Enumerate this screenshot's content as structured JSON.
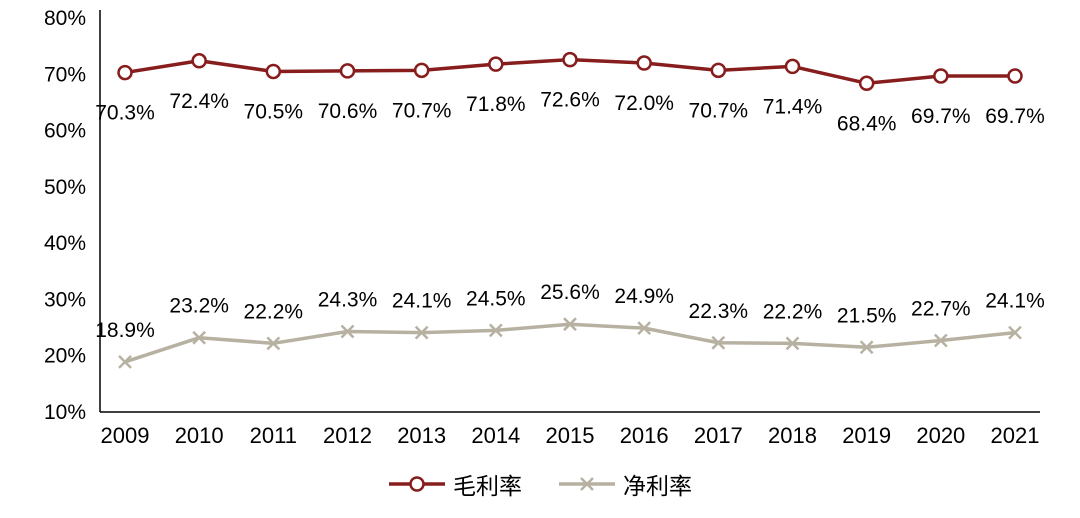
{
  "chart_data": {
    "type": "line",
    "categories": [
      "2009",
      "2010",
      "2011",
      "2012",
      "2013",
      "2014",
      "2015",
      "2016",
      "2017",
      "2018",
      "2019",
      "2020",
      "2021"
    ],
    "series": [
      {
        "name": "毛利率",
        "values": [
          70.3,
          72.4,
          70.5,
          70.6,
          70.7,
          71.8,
          72.6,
          72.0,
          70.7,
          71.4,
          68.4,
          69.7,
          69.7
        ],
        "color": "#871D1D",
        "marker": "circle-open",
        "label_position": "below"
      },
      {
        "name": "净利率",
        "values": [
          18.9,
          23.2,
          22.2,
          24.3,
          24.1,
          24.5,
          25.6,
          24.9,
          22.3,
          22.2,
          21.5,
          22.7,
          24.1
        ],
        "color": "#B7B1A2",
        "marker": "x",
        "label_position": "above"
      }
    ],
    "ylim": [
      10,
      80
    ],
    "ytick_step": 10,
    "ytick_labels": [
      "10%",
      "20%",
      "30%",
      "40%",
      "50%",
      "60%",
      "70%",
      "80%"
    ],
    "value_suffix": "%",
    "grid": false,
    "legend_position": "bottom",
    "axis_color": "#000000",
    "label_color": "#000000",
    "background_color": "#ffffff"
  }
}
